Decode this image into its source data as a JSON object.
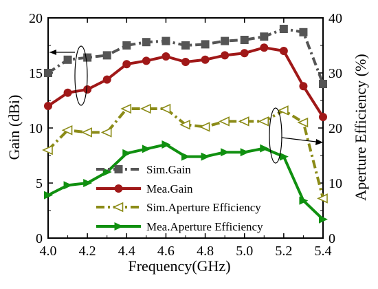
{
  "chart_data": {
    "type": "line",
    "title": "",
    "xlabel": "Frequency(GHz)",
    "ylabel": "Gain (dBi)",
    "y2label": "Aperture Efficiency (%)",
    "xlim": [
      4.0,
      5.4
    ],
    "ylim": [
      0,
      20
    ],
    "y2lim": [
      0,
      40
    ],
    "x_ticks": [
      "4.0",
      "4.2",
      "4.4",
      "4.6",
      "4.8",
      "5.0",
      "5.2",
      "5.4"
    ],
    "y_ticks": [
      "0",
      "5",
      "10",
      "15",
      "20"
    ],
    "y2_ticks": [
      "0",
      "10",
      "20",
      "30",
      "40"
    ],
    "grid": false,
    "legend_position": "bottom-center",
    "series": [
      {
        "name": "Sim.Gain",
        "axis": "left",
        "color": "#555555",
        "line": "dash-dot",
        "marker": "square",
        "x": [
          4.0,
          4.1,
          4.2,
          4.3,
          4.4,
          4.5,
          4.6,
          4.7,
          4.8,
          4.9,
          5.0,
          5.1,
          5.2,
          5.3,
          5.4
        ],
        "y": [
          15.0,
          16.2,
          16.4,
          16.6,
          17.5,
          17.8,
          17.9,
          17.5,
          17.6,
          17.9,
          18.0,
          18.3,
          19.0,
          18.7,
          14.0
        ]
      },
      {
        "name": "Mea.Gain",
        "axis": "left",
        "color": "#a01818",
        "line": "solid",
        "marker": "circle",
        "x": [
          4.0,
          4.1,
          4.2,
          4.3,
          4.4,
          4.5,
          4.6,
          4.7,
          4.8,
          4.9,
          5.0,
          5.1,
          5.2,
          5.3,
          5.4
        ],
        "y": [
          12.0,
          13.2,
          13.5,
          14.4,
          15.8,
          16.1,
          16.5,
          16.0,
          16.2,
          16.6,
          16.8,
          17.3,
          17.0,
          13.8,
          11.0
        ]
      },
      {
        "name": "Sim.Aperture Efficiency",
        "axis": "right",
        "color": "#8b8b17",
        "line": "dash-dot",
        "marker": "triangle-left",
        "x": [
          4.0,
          4.1,
          4.2,
          4.3,
          4.4,
          4.5,
          4.6,
          4.7,
          4.8,
          4.9,
          5.0,
          5.1,
          5.2,
          5.3,
          5.4
        ],
        "y": [
          16.0,
          19.6,
          19.2,
          19.2,
          23.5,
          23.5,
          23.5,
          20.6,
          20.2,
          21.2,
          21.2,
          21.2,
          23.2,
          21.0,
          7.2
        ]
      },
      {
        "name": "Mea.Aperture Efficiency",
        "axis": "right",
        "color": "#109010",
        "line": "solid",
        "marker": "triangle-right",
        "x": [
          4.0,
          4.1,
          4.2,
          4.3,
          4.4,
          4.5,
          4.6,
          4.7,
          4.8,
          4.9,
          5.0,
          5.1,
          5.2,
          5.3,
          5.4
        ],
        "y": [
          7.8,
          9.6,
          10.0,
          12.0,
          15.4,
          16.2,
          17.0,
          14.8,
          14.8,
          15.6,
          15.6,
          16.3,
          14.8,
          6.8,
          3.4
        ]
      }
    ]
  }
}
